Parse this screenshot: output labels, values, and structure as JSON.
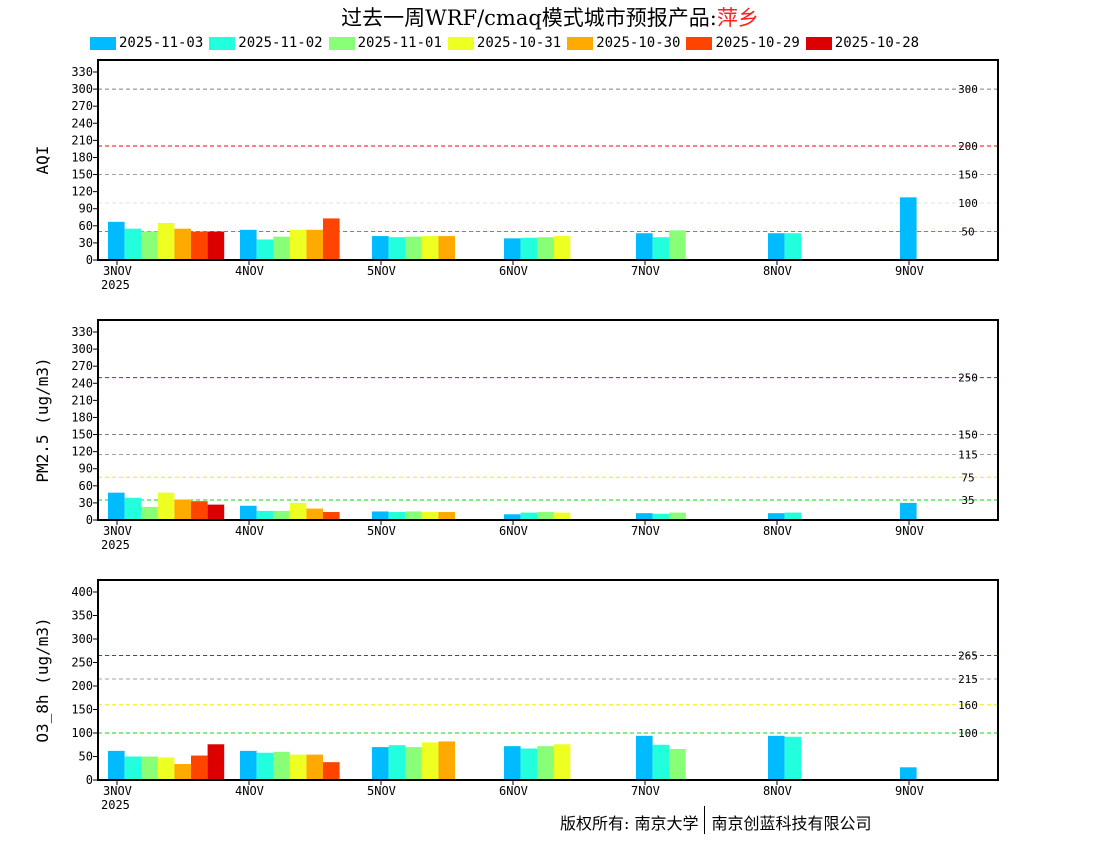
{
  "title": {
    "main": "过去一周WRF/cmaq模式城市预报产品:",
    "city": "萍乡"
  },
  "colors": {
    "city": "#ff2020"
  },
  "footer": {
    "left": "版权所有: 南京大学",
    "right": "南京创蓝科技有限公司"
  },
  "chart_data": [
    {
      "type": "bar",
      "ylabel": "AQI",
      "ylim": [
        0,
        330
      ],
      "yticks": [
        0,
        30,
        60,
        90,
        120,
        150,
        180,
        210,
        240,
        270,
        300,
        330
      ],
      "categories": [
        "3NOV",
        "4NOV",
        "5NOV",
        "6NOV",
        "7NOV",
        "8NOV",
        "9NOV"
      ],
      "year_label": "2025",
      "ref_lines": [
        {
          "value": 300,
          "label": "300",
          "color": "#808080"
        },
        {
          "value": 200,
          "label": "200",
          "color": "#ff0000"
        },
        {
          "value": 150,
          "label": "150",
          "color": "#a0a0a0"
        },
        {
          "value": 100,
          "label": "100",
          "color": "#e0e0e0"
        },
        {
          "value": 50,
          "label": "50",
          "color": "#00dd00"
        }
      ],
      "series": [
        {
          "name": "2025-11-03",
          "color": "#00bbff",
          "values": [
            67,
            53,
            42,
            38,
            47,
            47,
            110
          ]
        },
        {
          "name": "2025-11-02",
          "color": "#22ffdd",
          "values": [
            55,
            36,
            40,
            39,
            40,
            47,
            null
          ]
        },
        {
          "name": "2025-11-01",
          "color": "#88ff77",
          "values": [
            50,
            41,
            41,
            40,
            52,
            null,
            null
          ]
        },
        {
          "name": "2025-10-31",
          "color": "#eeff22",
          "values": [
            65,
            53,
            42,
            42,
            null,
            null,
            null
          ]
        },
        {
          "name": "2025-10-30",
          "color": "#ffaa00",
          "values": [
            55,
            53,
            42,
            null,
            null,
            null,
            null
          ]
        },
        {
          "name": "2025-10-29",
          "color": "#ff4400",
          "values": [
            50,
            73,
            null,
            null,
            null,
            null,
            null
          ]
        },
        {
          "name": "2025-10-28",
          "color": "#dd0000",
          "values": [
            50,
            null,
            null,
            null,
            null,
            null,
            null
          ]
        }
      ]
    },
    {
      "type": "bar",
      "ylabel": "PM2.5 (ug/m3)",
      "ylim": [
        0,
        330
      ],
      "yticks": [
        0,
        30,
        60,
        90,
        120,
        150,
        180,
        210,
        240,
        270,
        300,
        330
      ],
      "categories": [
        "3NOV",
        "4NOV",
        "5NOV",
        "6NOV",
        "7NOV",
        "8NOV",
        "9NOV"
      ],
      "year_label": "2025",
      "ref_lines": [
        {
          "value": 250,
          "label": "250",
          "color": "#cc0077"
        },
        {
          "value": 150,
          "label": "150",
          "color": "#808080"
        },
        {
          "value": 115,
          "label": "115",
          "color": "#a0a0a0"
        },
        {
          "value": 75,
          "label": "75",
          "color": "#eeee00"
        },
        {
          "value": 35,
          "label": "35",
          "color": "#00dd00"
        }
      ],
      "series": [
        {
          "name": "2025-11-03",
          "color": "#00bbff",
          "values": [
            48,
            25,
            15,
            10,
            12,
            12,
            30
          ]
        },
        {
          "name": "2025-11-02",
          "color": "#22ffdd",
          "values": [
            39,
            16,
            14,
            13,
            11,
            13,
            null
          ]
        },
        {
          "name": "2025-11-01",
          "color": "#88ff77",
          "values": [
            23,
            16,
            15,
            14,
            13,
            null,
            null
          ]
        },
        {
          "name": "2025-10-31",
          "color": "#eeff22",
          "values": [
            48,
            30,
            14,
            13,
            null,
            null,
            null
          ]
        },
        {
          "name": "2025-10-30",
          "color": "#ffaa00",
          "values": [
            36,
            20,
            14,
            null,
            null,
            null,
            null
          ]
        },
        {
          "name": "2025-10-29",
          "color": "#ff4400",
          "values": [
            33,
            14,
            null,
            null,
            null,
            null,
            null
          ]
        },
        {
          "name": "2025-10-28",
          "color": "#dd0000",
          "values": [
            27,
            null,
            null,
            null,
            null,
            null,
            null
          ]
        }
      ]
    },
    {
      "type": "bar",
      "ylabel": "O3_8h (ug/m3)",
      "ylim": [
        0,
        400
      ],
      "yticks": [
        0,
        50,
        100,
        150,
        200,
        250,
        300,
        350,
        400
      ],
      "categories": [
        "3NOV",
        "4NOV",
        "5NOV",
        "6NOV",
        "7NOV",
        "8NOV",
        "9NOV"
      ],
      "year_label": "2025",
      "ref_lines": [
        {
          "value": 265,
          "label": "265",
          "color": "#ff0000"
        },
        {
          "value": 215,
          "label": "215",
          "color": "#a0a0a0"
        },
        {
          "value": 160,
          "label": "160",
          "color": "#eeee00"
        },
        {
          "value": 100,
          "label": "100",
          "color": "#00dd00"
        }
      ],
      "series": [
        {
          "name": "2025-11-03",
          "color": "#00bbff",
          "values": [
            62,
            62,
            70,
            72,
            94,
            94,
            27
          ]
        },
        {
          "name": "2025-11-02",
          "color": "#22ffdd",
          "values": [
            50,
            58,
            74,
            67,
            75,
            92,
            null
          ]
        },
        {
          "name": "2025-11-01",
          "color": "#88ff77",
          "values": [
            50,
            60,
            70,
            72,
            66,
            null,
            null
          ]
        },
        {
          "name": "2025-10-31",
          "color": "#eeff22",
          "values": [
            48,
            54,
            80,
            76,
            null,
            null,
            null
          ]
        },
        {
          "name": "2025-10-30",
          "color": "#ffaa00",
          "values": [
            34,
            54,
            82,
            null,
            null,
            null,
            null
          ]
        },
        {
          "name": "2025-10-29",
          "color": "#ff4400",
          "values": [
            52,
            38,
            null,
            null,
            null,
            null,
            null
          ]
        },
        {
          "name": "2025-10-28",
          "color": "#dd0000",
          "values": [
            76,
            null,
            null,
            null,
            null,
            null,
            null
          ]
        }
      ]
    }
  ]
}
